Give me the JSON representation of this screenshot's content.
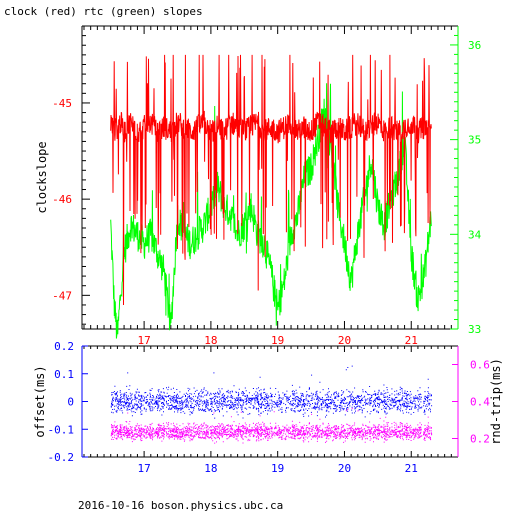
{
  "title": "clock (red) rtc (green) slopes",
  "footer": "2016-10-16  boson.physics.ubc.ca",
  "colors": {
    "red": "#ff0000",
    "green": "#00ff00",
    "blue": "#0000ff",
    "magenta": "#ff00ff",
    "axis": "#000000"
  },
  "chart_data": [
    {
      "type": "line",
      "title": "clock (red) rtc (green) slopes",
      "x_ticks": [
        "17",
        "18",
        "19",
        "20",
        "21"
      ],
      "x_tick_values": [
        17,
        18,
        19,
        20,
        21
      ],
      "xlim": [
        16.07,
        21.7
      ],
      "ylabel_left": "clockslope",
      "ylim_left": [
        -47.35,
        -44.2
      ],
      "y_ticks_left": [
        "-45",
        "-46",
        "-47"
      ],
      "y_tick_values_left": [
        -45,
        -46,
        -47
      ],
      "ylim_right": [
        33.0,
        36.2
      ],
      "y_ticks_right": [
        "36",
        "35",
        "34",
        "33"
      ],
      "y_tick_values_right": [
        36,
        35,
        34,
        33
      ],
      "grid": false,
      "series": [
        {
          "name": "clock (red)",
          "color": "#ff0000",
          "axis": "left",
          "x": [
            16.5,
            16.55,
            16.6,
            16.65,
            16.7,
            16.8,
            16.9,
            17.0,
            17.1,
            17.2,
            17.3,
            17.4,
            17.5,
            17.6,
            17.7,
            17.8,
            17.9,
            18.0,
            18.1,
            18.2,
            18.3,
            18.4,
            18.5,
            18.6,
            18.7,
            18.8,
            18.9,
            19.0,
            19.1,
            19.2,
            19.3,
            19.4,
            19.5,
            19.6,
            19.7,
            19.8,
            19.9,
            20.0,
            20.1,
            20.2,
            20.3,
            20.4,
            20.5,
            20.6,
            20.7,
            20.8,
            20.9,
            21.0,
            21.1,
            21.2,
            21.3
          ],
          "values": [
            -45.2,
            -45.3,
            -45.25,
            -45.2,
            -45.3,
            -45.2,
            -45.3,
            -45.25,
            -45.2,
            -45.3,
            -45.25,
            -45.3,
            -45.2,
            -45.25,
            -45.3,
            -45.25,
            -45.2,
            -45.3,
            -45.25,
            -45.3,
            -45.2,
            -45.25,
            -45.3,
            -45.25,
            -45.2,
            -45.3,
            -45.25,
            -45.3,
            -45.25,
            -45.2,
            -45.3,
            -45.25,
            -45.3,
            -45.2,
            -45.25,
            -45.3,
            -45.25,
            -45.3,
            -45.25,
            -45.2,
            -45.3,
            -45.25,
            -45.2,
            -45.3,
            -45.25,
            -45.3,
            -45.25,
            -45.2,
            -45.3,
            -45.25,
            -45.3
          ]
        },
        {
          "name": "rtc (green)",
          "color": "#00ff00",
          "axis": "right",
          "x": [
            16.5,
            16.55,
            16.6,
            16.65,
            16.7,
            16.8,
            16.9,
            17.0,
            17.1,
            17.2,
            17.3,
            17.4,
            17.5,
            17.6,
            17.7,
            17.8,
            17.9,
            18.0,
            18.1,
            18.2,
            18.3,
            18.4,
            18.5,
            18.6,
            18.7,
            18.8,
            18.9,
            19.0,
            19.1,
            19.2,
            19.3,
            19.4,
            19.5,
            19.6,
            19.7,
            19.8,
            19.9,
            20.0,
            20.1,
            20.2,
            20.3,
            20.4,
            20.5,
            20.6,
            20.7,
            20.8,
            20.9,
            21.0,
            21.1,
            21.2,
            21.3
          ],
          "values": [
            34.1,
            33.3,
            32.9,
            33.4,
            33.8,
            34.1,
            34.0,
            33.9,
            34.0,
            33.8,
            33.6,
            33.0,
            34.2,
            34.0,
            33.9,
            34.0,
            34.1,
            34.3,
            34.5,
            34.3,
            34.2,
            34.0,
            34.1,
            34.3,
            34.0,
            33.9,
            33.6,
            33.2,
            33.5,
            34.0,
            34.2,
            34.6,
            34.7,
            35.0,
            35.3,
            34.9,
            34.3,
            33.9,
            33.5,
            34.0,
            34.4,
            34.8,
            34.3,
            34.1,
            34.4,
            34.6,
            35.0,
            33.8,
            33.3,
            33.6,
            34.2
          ]
        }
      ]
    },
    {
      "type": "scatter",
      "x_ticks": [
        "17",
        "18",
        "19",
        "20",
        "21"
      ],
      "x_tick_values": [
        17,
        18,
        19,
        20,
        21
      ],
      "xlim": [
        16.07,
        21.7
      ],
      "ylabel_left": "offset(ms)",
      "ylim_left": [
        -0.2,
        0.2
      ],
      "y_ticks_left": [
        "0.2",
        "0.1",
        "0",
        "-0.1",
        "-0.2"
      ],
      "y_tick_values_left": [
        0.2,
        0.1,
        0,
        -0.1,
        -0.2
      ],
      "ylabel_right": "rnd-trip(ms)",
      "ylim_right": [
        0.1,
        0.7
      ],
      "y_ticks_right": [
        "0.6",
        "0.4",
        "0.2"
      ],
      "y_tick_values_right": [
        0.6,
        0.4,
        0.2
      ],
      "grid": false,
      "series": [
        {
          "name": "offset",
          "color": "#0000ff",
          "axis": "left",
          "x_range": [
            16.5,
            21.3
          ],
          "center": 0.0,
          "spread": 0.03
        },
        {
          "name": "rnd-trip",
          "color": "#ff00ff",
          "axis": "right",
          "x_range": [
            16.5,
            21.3
          ],
          "center": 0.235,
          "spread": 0.03
        }
      ]
    }
  ]
}
